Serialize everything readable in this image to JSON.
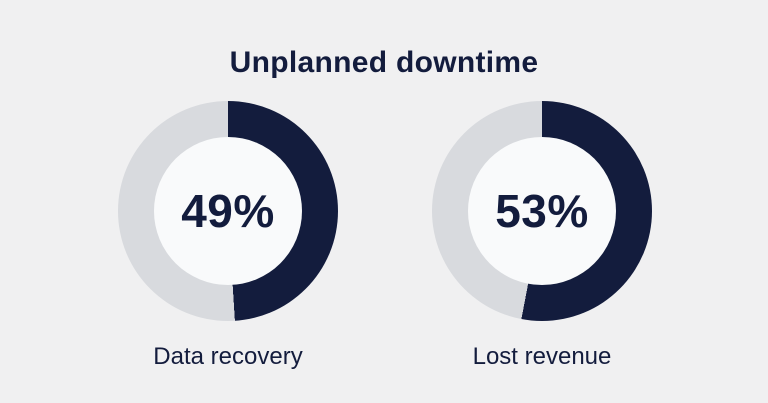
{
  "page": {
    "title": "Unplanned downtime"
  },
  "colors": {
    "background": "#f0f0f1",
    "fill": "#131c3d",
    "track": "#d8dade",
    "hole": "#f9fafb",
    "text": "#131c3d"
  },
  "charts": [
    {
      "percent_label": "49%",
      "value": 49,
      "label": "Data recovery"
    },
    {
      "percent_label": "53%",
      "value": 53,
      "label": "Lost revenue"
    }
  ],
  "chart_data": {
    "type": "pie",
    "subtype": "donut",
    "title": "Unplanned downtime",
    "legend_position": "none",
    "start_angle_deg": 0,
    "direction": "clockwise",
    "series": [
      {
        "name": "Data recovery",
        "values": [
          49,
          51
        ],
        "labels": [
          "filled",
          "remainder"
        ],
        "center_label": "49%"
      },
      {
        "name": "Lost revenue",
        "values": [
          53,
          47
        ],
        "labels": [
          "filled",
          "remainder"
        ],
        "center_label": "53%"
      }
    ]
  }
}
